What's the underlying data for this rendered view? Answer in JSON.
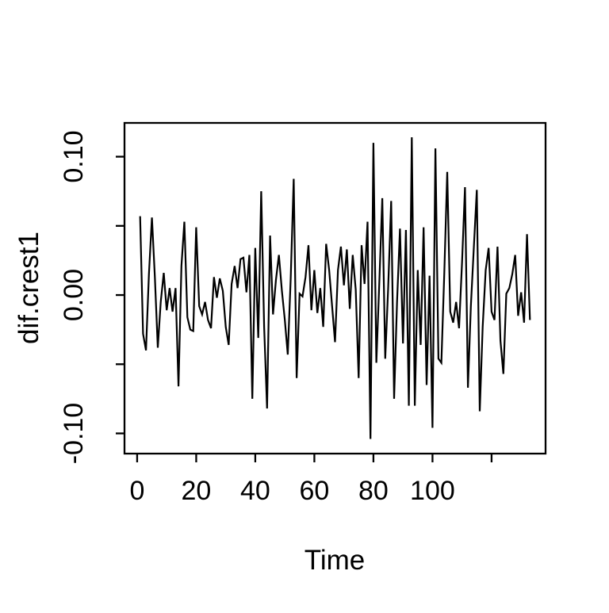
{
  "chart_data": {
    "type": "line",
    "title": "",
    "xlabel": "Time",
    "ylabel": "dif.crest1",
    "series_name": "dif.crest1",
    "x_start": 1,
    "x_step": 1,
    "n_points": 133,
    "values": [
      0.057,
      -0.028,
      -0.04,
      0.015,
      0.056,
      0.013,
      -0.038,
      -0.005,
      0.016,
      -0.011,
      0.005,
      -0.012,
      0.005,
      -0.066,
      0.021,
      0.053,
      -0.016,
      -0.025,
      -0.026,
      0.049,
      -0.008,
      -0.014,
      -0.005,
      -0.018,
      -0.024,
      0.013,
      -0.002,
      0.012,
      0.003,
      -0.023,
      -0.036,
      0.008,
      0.021,
      0.005,
      0.026,
      0.027,
      0.002,
      0.029,
      -0.075,
      0.034,
      -0.031,
      0.075,
      -0.023,
      -0.082,
      0.043,
      -0.014,
      0.011,
      0.029,
      0.003,
      -0.018,
      -0.043,
      0.012,
      0.084,
      -0.06,
      0.001,
      -0.001,
      0.013,
      0.036,
      -0.011,
      0.018,
      -0.013,
      0.005,
      -0.023,
      0.037,
      0.018,
      -0.008,
      -0.034,
      0.018,
      0.035,
      0.007,
      0.033,
      -0.01,
      0.029,
      0.004,
      -0.06,
      0.036,
      0.008,
      0.053,
      -0.104,
      0.11,
      -0.049,
      0.01,
      0.07,
      -0.046,
      0.005,
      0.068,
      -0.075,
      -0.005,
      0.048,
      -0.035,
      0.047,
      -0.08,
      0.114,
      -0.08,
      0.018,
      -0.036,
      0.049,
      -0.065,
      0.014,
      -0.096,
      0.106,
      -0.046,
      -0.049,
      0.016,
      0.089,
      -0.012,
      -0.02,
      -0.005,
      -0.024,
      0.024,
      0.078,
      -0.067,
      -0.008,
      0.035,
      0.076,
      -0.084,
      -0.023,
      0.018,
      0.034,
      -0.012,
      -0.018,
      0.035,
      -0.033,
      -0.057,
      0.001,
      0.005,
      0.015,
      0.029,
      -0.015,
      0.002,
      -0.02,
      0.044,
      -0.018
    ],
    "xlim": [
      -4.28,
      138.28
    ],
    "ylim": [
      -0.1146,
      0.1244
    ],
    "x_axis": {
      "title": "Time",
      "ticks": [
        {
          "v": 0,
          "label": "0"
        },
        {
          "v": 20,
          "label": "20"
        },
        {
          "v": 40,
          "label": "40"
        },
        {
          "v": 60,
          "label": "60"
        },
        {
          "v": 80,
          "label": "80"
        },
        {
          "v": 100,
          "label": "100"
        },
        {
          "v": 120,
          "label": ""
        }
      ]
    },
    "y_axis": {
      "title": "dif.crest1",
      "ticks": [
        {
          "v": -0.1,
          "label": "-0.10"
        },
        {
          "v": -0.05,
          "label": ""
        },
        {
          "v": 0.0,
          "label": "0.00"
        },
        {
          "v": 0.05,
          "label": ""
        },
        {
          "v": 0.1,
          "label": "0.10"
        }
      ]
    },
    "grid": false,
    "legend": "none",
    "line_color": "#000000",
    "box_color": "#000000",
    "background": "#ffffff"
  }
}
